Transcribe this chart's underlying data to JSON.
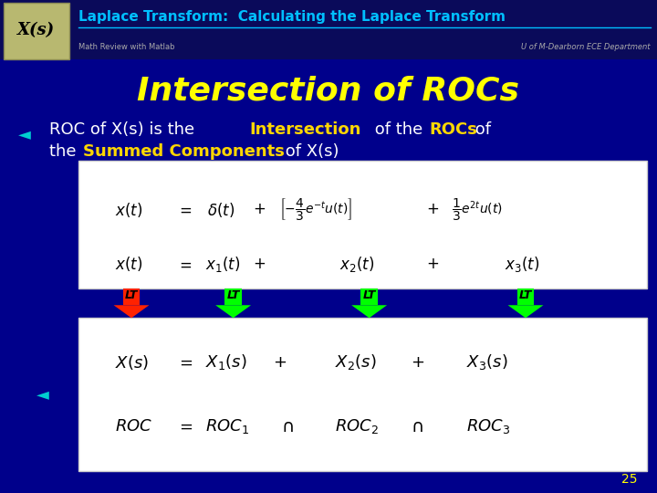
{
  "bg_color": "#00008B",
  "header_bg": "#0a0a5a",
  "title_text": "Laplace Transform:  Calculating the Laplace Transform",
  "title_color": "#00BFFF",
  "subtitle_left": "Math Review with Matlab",
  "subtitle_right": "U of M-Dearborn ECE Department",
  "subtitle_color": "#AAAAAA",
  "xs_label": "X(s)",
  "xs_bg": "#B8B870",
  "section_title": "Intersection of ROCs",
  "section_color": "#FFFF00",
  "highlight_color": "#FFD700",
  "arrow_red": "#FF2200",
  "arrow_green": "#00FF00",
  "page_num": "25",
  "page_color": "#FFFF00",
  "speaker_color": "#00CED1",
  "white": "#FFFFFF",
  "black": "#000000"
}
